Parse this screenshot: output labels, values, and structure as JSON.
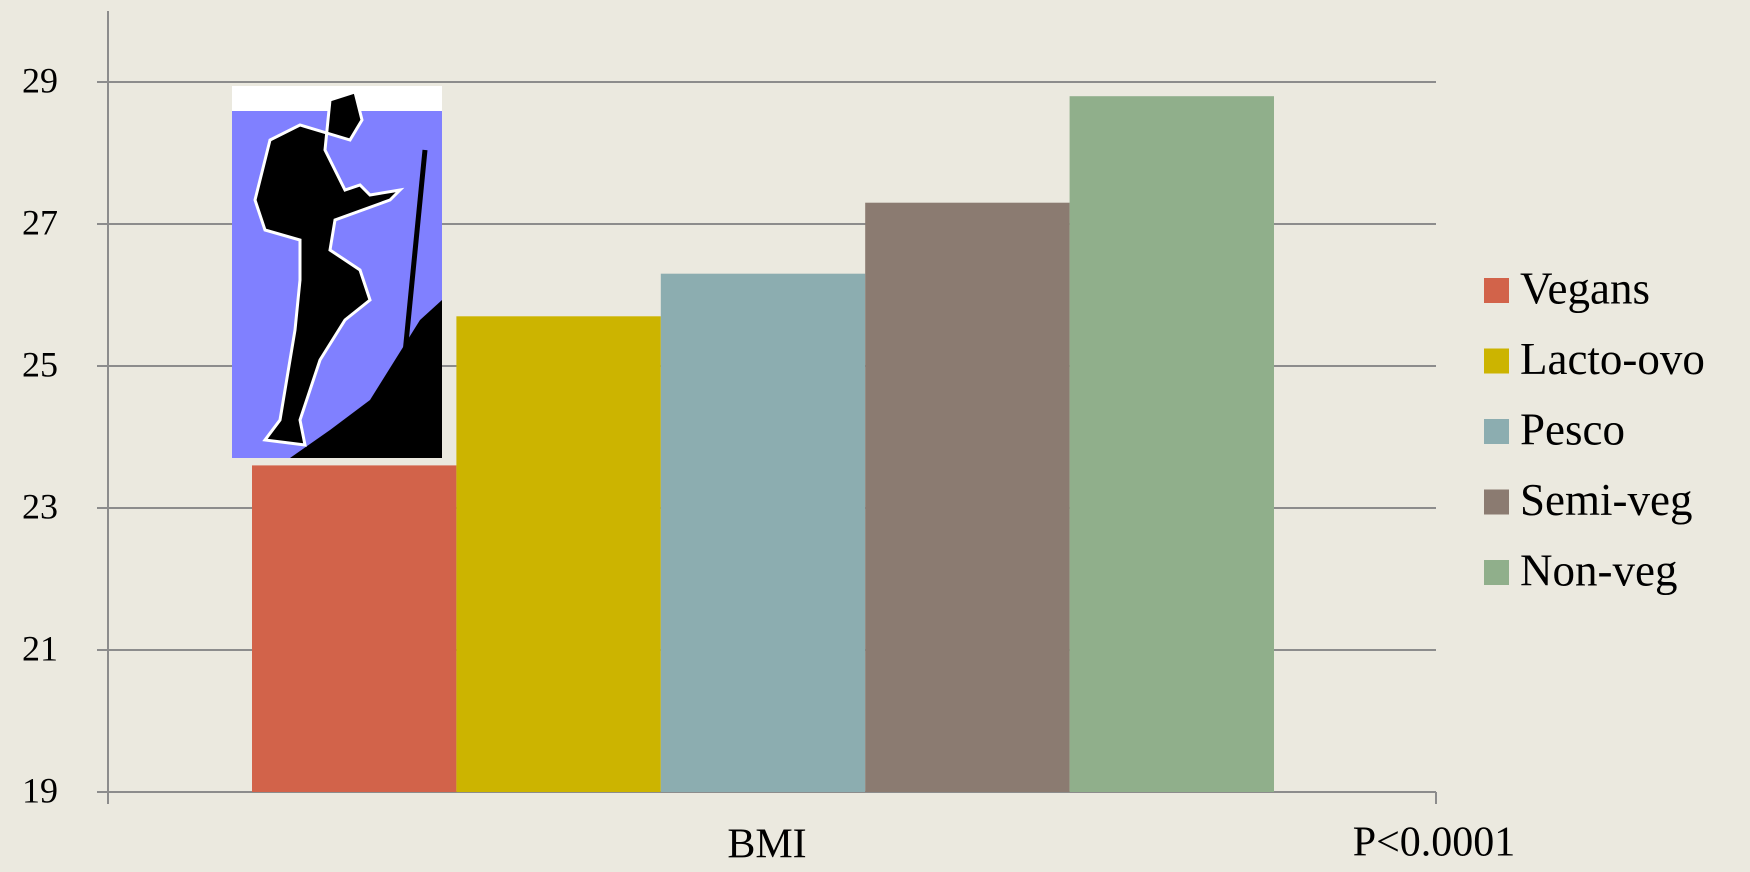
{
  "chart_data": {
    "type": "bar",
    "categories": [
      "BMI"
    ],
    "annotation": "P<0.0001",
    "series": [
      {
        "name": "Vegans",
        "color": "#d2634a",
        "values": [
          23.6
        ]
      },
      {
        "name": "Lacto-ovo",
        "color": "#ccb400",
        "values": [
          25.7
        ]
      },
      {
        "name": "Pesco",
        "color": "#8cadb0",
        "values": [
          26.3
        ]
      },
      {
        "name": "Semi-veg",
        "color": "#8b7b71",
        "values": [
          27.3
        ]
      },
      {
        "name": "Non-veg",
        "color": "#90af8b",
        "values": [
          28.8
        ]
      }
    ],
    "ylim": [
      19,
      30
    ],
    "yticks": [
      19,
      21,
      23,
      25,
      27,
      29
    ],
    "grid": true,
    "legend": "right"
  }
}
